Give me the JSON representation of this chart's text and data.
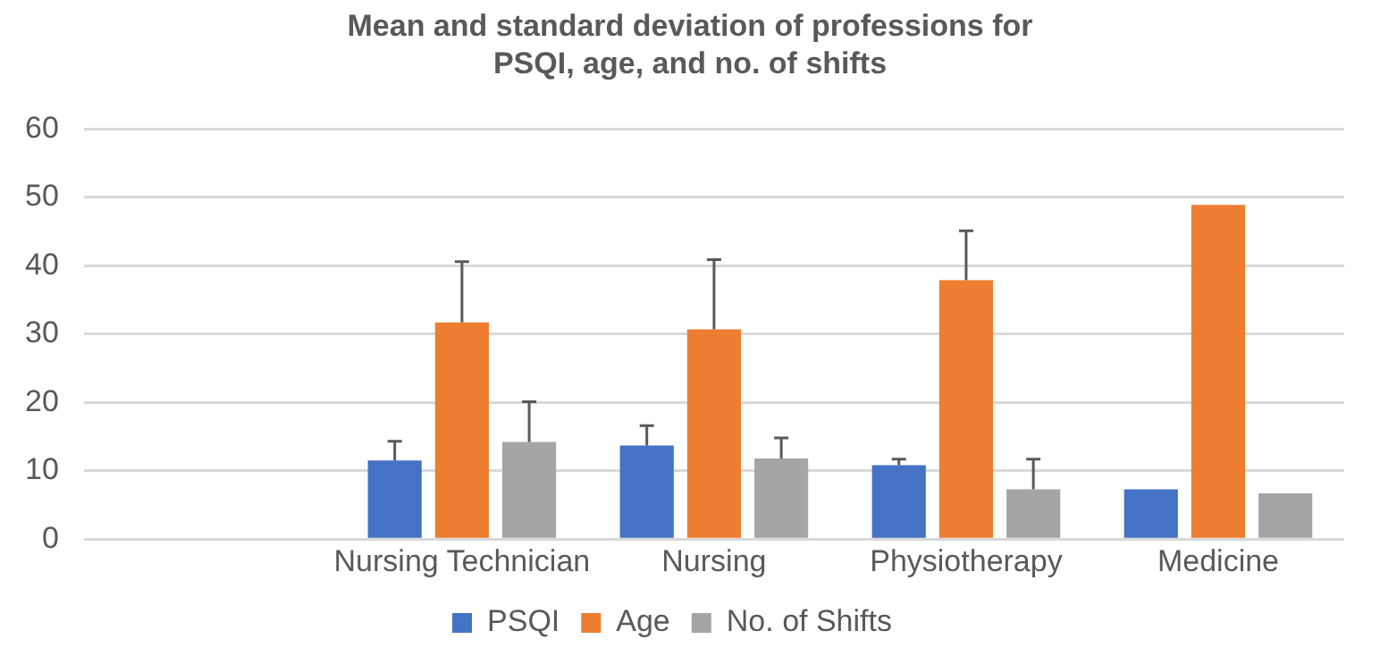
{
  "chart_data": {
    "type": "bar",
    "title": "Mean and standard deviation of professions for PSQI, age, and no. of shifts",
    "categories": [
      null,
      "Nursing Technician",
      "Nursing",
      "Physiotherapy",
      "Medicine"
    ],
    "series": [
      {
        "name": "PSQI",
        "color": "#4472c4",
        "values": [
          null,
          11.5,
          13.7,
          10.8,
          7.3
        ],
        "errors": [
          null,
          2.8,
          2.9,
          0.9,
          null
        ]
      },
      {
        "name": "Age",
        "color": "#ed7d31",
        "values": [
          null,
          31.7,
          30.7,
          37.9,
          48.9
        ],
        "errors": [
          null,
          8.9,
          10.2,
          7.2,
          null
        ]
      },
      {
        "name": "No. of Shifts",
        "color": "#a5a5a5",
        "values": [
          null,
          14.2,
          11.8,
          7.3,
          6.7
        ],
        "errors": [
          null,
          5.9,
          3.0,
          4.4,
          null
        ]
      }
    ],
    "ylim": [
      0,
      60
    ],
    "yticks": [
      0,
      10,
      20,
      30,
      40,
      50,
      60
    ],
    "grid": "y",
    "legend": "bottom"
  }
}
